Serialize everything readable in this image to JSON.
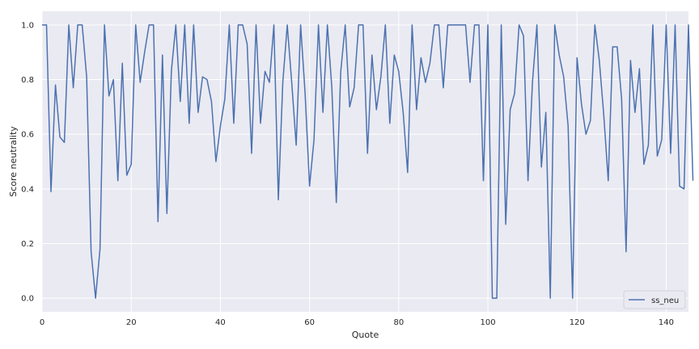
{
  "chart_data": {
    "type": "line",
    "xlabel": "Quote",
    "ylabel": "Score neutrality",
    "xlim": [
      0,
      145
    ],
    "ylim": [
      -0.05,
      1.05
    ],
    "xticks": [
      0,
      20,
      40,
      60,
      80,
      100,
      120,
      140
    ],
    "yticks": [
      0.0,
      0.2,
      0.4,
      0.6,
      0.8,
      1.0
    ],
    "grid": true,
    "legend_position": "lower-right",
    "colors": {
      "background": "#eaeaf2",
      "grid": "#ffffff",
      "line": "#4c72b0"
    },
    "series": [
      {
        "name": "ss_neu",
        "values": [
          1.0,
          1.0,
          0.39,
          0.78,
          0.59,
          0.57,
          1.0,
          0.77,
          1.0,
          1.0,
          0.81,
          0.17,
          0.0,
          0.18,
          1.0,
          0.74,
          0.8,
          0.43,
          0.86,
          0.45,
          0.49,
          1.0,
          0.79,
          0.9,
          1.0,
          1.0,
          0.28,
          0.89,
          0.31,
          0.83,
          1.0,
          0.72,
          1.0,
          0.64,
          1.0,
          0.68,
          0.81,
          0.8,
          0.72,
          0.5,
          0.63,
          0.73,
          1.0,
          0.64,
          1.0,
          1.0,
          0.93,
          0.53,
          1.0,
          0.64,
          0.83,
          0.79,
          1.0,
          0.36,
          0.79,
          1.0,
          0.79,
          0.56,
          1.0,
          0.75,
          0.41,
          0.58,
          1.0,
          0.68,
          1.0,
          0.77,
          0.35,
          0.83,
          1.0,
          0.7,
          0.77,
          1.0,
          1.0,
          0.53,
          0.89,
          0.69,
          0.81,
          1.0,
          0.64,
          0.89,
          0.83,
          0.68,
          0.46,
          1.0,
          0.69,
          0.88,
          0.79,
          0.86,
          1.0,
          1.0,
          0.77,
          1.0,
          1.0,
          1.0,
          1.0,
          1.0,
          0.79,
          1.0,
          1.0,
          0.43,
          1.0,
          0.0,
          0.0,
          1.0,
          0.27,
          0.69,
          0.75,
          1.0,
          0.96,
          0.43,
          0.79,
          1.0,
          0.48,
          0.68,
          0.0,
          1.0,
          0.89,
          0.81,
          0.63,
          0.0,
          0.88,
          0.71,
          0.6,
          0.65,
          1.0,
          0.87,
          0.67,
          0.43,
          0.92,
          0.92,
          0.73,
          0.17,
          0.87,
          0.68,
          0.84,
          0.49,
          0.56,
          1.0,
          0.52,
          0.58,
          1.0,
          0.53,
          1.0,
          0.41,
          0.4,
          1.0,
          0.43
        ]
      }
    ]
  }
}
